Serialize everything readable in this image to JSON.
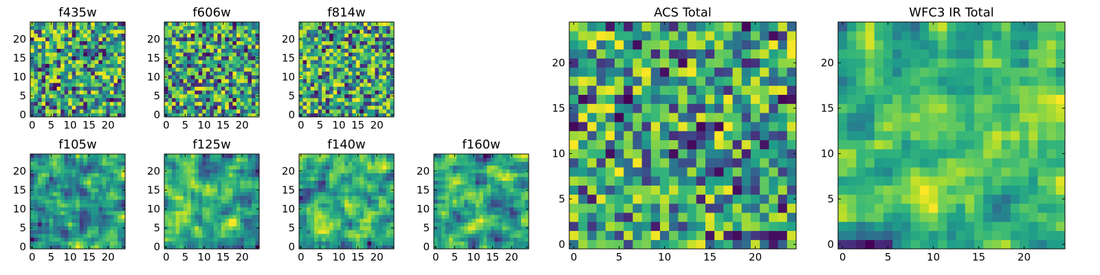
{
  "figure": {
    "background": "#ffffff"
  },
  "colormap": {
    "name": "viridis",
    "stops": [
      "#440154",
      "#482878",
      "#3e4989",
      "#31688e",
      "#26828e",
      "#1f9e89",
      "#35b779",
      "#6ece58",
      "#b5de2b",
      "#fde725"
    ]
  },
  "chart_data": [
    {
      "type": "heatmap",
      "title": "f435w",
      "size": 25,
      "x_ticks": [
        "0",
        "5",
        "10",
        "15",
        "20"
      ],
      "y_ticks": [
        "0",
        "5",
        "10",
        "15",
        "20"
      ],
      "xlim": [
        0,
        25
      ],
      "ylim": [
        0,
        25
      ],
      "value_range": [
        0,
        1
      ],
      "seed": 11,
      "smoothing": 0,
      "bias": 0.58
    },
    {
      "type": "heatmap",
      "title": "f606w",
      "size": 25,
      "x_ticks": [
        "0",
        "5",
        "10",
        "15",
        "20"
      ],
      "y_ticks": [
        "0",
        "5",
        "10",
        "15",
        "20"
      ],
      "xlim": [
        0,
        25
      ],
      "ylim": [
        0,
        25
      ],
      "value_range": [
        0,
        1
      ],
      "seed": 23,
      "smoothing": 0,
      "bias": 0.6
    },
    {
      "type": "heatmap",
      "title": "f814w",
      "size": 25,
      "x_ticks": [
        "0",
        "5",
        "10",
        "15",
        "20"
      ],
      "y_ticks": [
        "0",
        "5",
        "10",
        "15",
        "20"
      ],
      "xlim": [
        0,
        25
      ],
      "ylim": [
        0,
        25
      ],
      "value_range": [
        0,
        1
      ],
      "seed": 37,
      "smoothing": 0,
      "bias": 0.64
    },
    {
      "type": "heatmap",
      "title": "f105w",
      "size": 25,
      "x_ticks": [
        "0",
        "5",
        "10",
        "15",
        "20"
      ],
      "y_ticks": [
        "0",
        "5",
        "10",
        "15",
        "20"
      ],
      "xlim": [
        0,
        25
      ],
      "ylim": [
        0,
        25
      ],
      "value_range": [
        0,
        1
      ],
      "seed": 41,
      "smoothing": 1,
      "bias": 0.6
    },
    {
      "type": "heatmap",
      "title": "f125w",
      "size": 25,
      "x_ticks": [
        "0",
        "5",
        "10",
        "15",
        "20"
      ],
      "y_ticks": [
        "0",
        "5",
        "10",
        "15",
        "20"
      ],
      "xlim": [
        0,
        25
      ],
      "ylim": [
        0,
        25
      ],
      "value_range": [
        0,
        1
      ],
      "seed": 53,
      "smoothing": 1,
      "bias": 0.58
    },
    {
      "type": "heatmap",
      "title": "f140w",
      "size": 25,
      "x_ticks": [
        "0",
        "5",
        "10",
        "15",
        "20"
      ],
      "y_ticks": [
        "0",
        "5",
        "10",
        "15",
        "20"
      ],
      "xlim": [
        0,
        25
      ],
      "ylim": [
        0,
        25
      ],
      "value_range": [
        0,
        1
      ],
      "seed": 67,
      "smoothing": 1,
      "bias": 0.64
    },
    {
      "type": "heatmap",
      "title": "f160w",
      "size": 25,
      "x_ticks": [
        "0",
        "5",
        "10",
        "15",
        "20"
      ],
      "y_ticks": [
        "0",
        "5",
        "10",
        "15",
        "20"
      ],
      "xlim": [
        0,
        25
      ],
      "ylim": [
        0,
        25
      ],
      "value_range": [
        0,
        1
      ],
      "seed": 71,
      "smoothing": 1,
      "bias": 0.64
    },
    {
      "type": "heatmap",
      "title": "ACS Total",
      "size": 25,
      "x_ticks": [
        "0",
        "5",
        "10",
        "15",
        "20"
      ],
      "y_ticks": [
        "0",
        "5",
        "10",
        "15",
        "20"
      ],
      "xlim": [
        0,
        25
      ],
      "ylim": [
        0,
        25
      ],
      "value_range": [
        0,
        1
      ],
      "seed": 83,
      "smoothing": 0,
      "bias": 0.62
    },
    {
      "type": "heatmap",
      "title": "WFC3 IR Total",
      "size": 25,
      "x_ticks": [
        "0",
        "5",
        "10",
        "15",
        "20"
      ],
      "y_ticks": [
        "0",
        "5",
        "10",
        "15",
        "20"
      ],
      "xlim": [
        0,
        25
      ],
      "ylim": [
        0,
        25
      ],
      "value_range": [
        0,
        1
      ],
      "seed": 97,
      "smoothing": 1,
      "bias": 0.6
    }
  ]
}
